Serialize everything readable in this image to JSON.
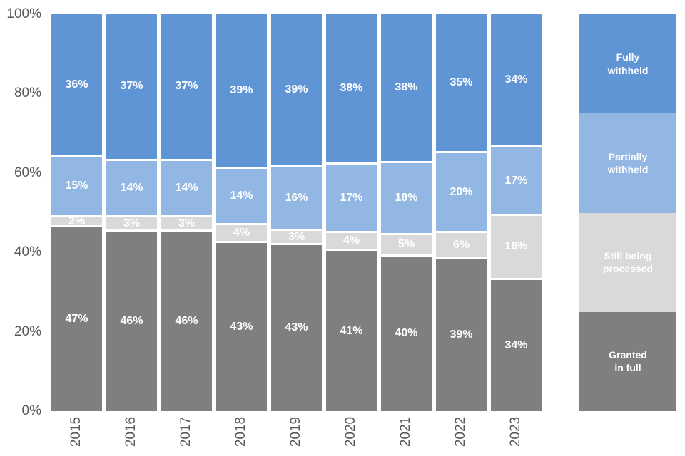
{
  "colors": {
    "fully_withheld": "#6095D5",
    "partially_withheld": "#92B7E3",
    "still_being_processed": "#D9D9D9",
    "granted_in_full": "#7F7F7F",
    "axis_text": "#595959",
    "segment_label_text": "#FFFFFF",
    "background": "#FFFFFF"
  },
  "chart_data": {
    "type": "bar",
    "stacked": true,
    "unit": "%",
    "title": "",
    "xlabel": "",
    "ylabel": "",
    "ylim": [
      0,
      100
    ],
    "grid": false,
    "legend_position": "right",
    "y_ticks": [
      "0%",
      "20%",
      "40%",
      "60%",
      "80%",
      "100%"
    ],
    "categories": [
      "2015",
      "2016",
      "2017",
      "2018",
      "2019",
      "2020",
      "2021",
      "2022",
      "2023"
    ],
    "stack_order_top_to_bottom": [
      "Fully withheld",
      "Partially withheld",
      "Still being processed",
      "Granted in full"
    ],
    "series": [
      {
        "name": "Fully withheld",
        "color_key": "fully_withheld",
        "values": [
          36,
          37,
          37,
          39,
          39,
          38,
          38,
          35,
          34
        ],
        "labels": [
          "36%",
          "37%",
          "37%",
          "39%",
          "39%",
          "38%",
          "38%",
          "35%",
          "34%"
        ]
      },
      {
        "name": "Partially withheld",
        "color_key": "partially_withheld",
        "values": [
          15,
          14,
          14,
          14,
          16,
          17,
          18,
          20,
          17
        ],
        "labels": [
          "15%",
          "14%",
          "14%",
          "14%",
          "16%",
          "17%",
          "18%",
          "20%",
          "17%"
        ]
      },
      {
        "name": "Still being processed",
        "color_key": "still_being_processed",
        "values": [
          2,
          3,
          3,
          4,
          3,
          4,
          5,
          6,
          16
        ],
        "labels": [
          "2%",
          "3%",
          "3%",
          "4%",
          "3%",
          "4%",
          "5%",
          "6%",
          "16%"
        ]
      },
      {
        "name": "Granted in full",
        "color_key": "granted_in_full",
        "values": [
          47,
          46,
          46,
          43,
          43,
          41,
          40,
          39,
          34
        ],
        "labels": [
          "47%",
          "46%",
          "46%",
          "43%",
          "43%",
          "41%",
          "40%",
          "39%",
          "34%"
        ]
      }
    ]
  },
  "legend": {
    "items": [
      {
        "label": "Fully\nwithheld",
        "color_key": "fully_withheld"
      },
      {
        "label": "Partially\nwithheld",
        "color_key": "partially_withheld"
      },
      {
        "label": "Still being\nprocessed",
        "color_key": "still_being_processed"
      },
      {
        "label": "Granted\nin full",
        "color_key": "granted_in_full"
      }
    ]
  }
}
